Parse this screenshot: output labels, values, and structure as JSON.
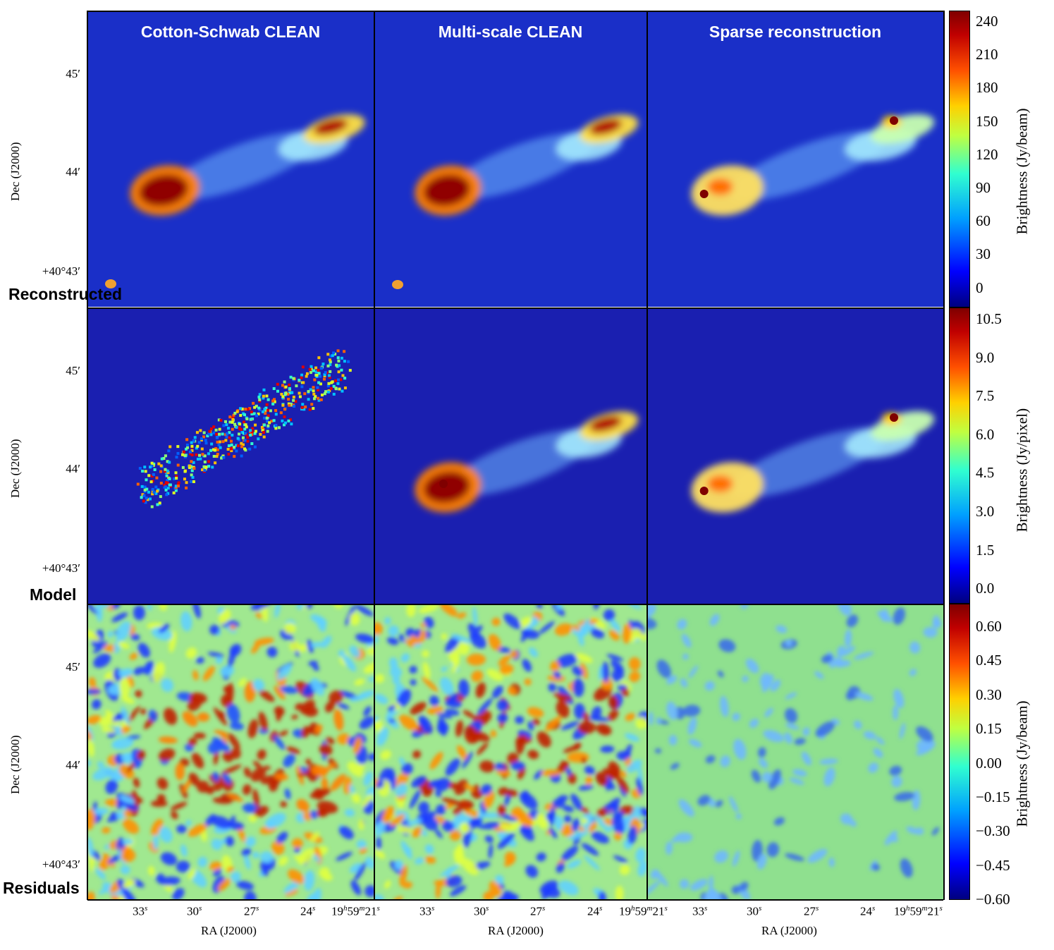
{
  "columns": [
    "Cotton-Schwab CLEAN",
    "Multi-scale CLEAN",
    "Sparse reconstruction"
  ],
  "rows": [
    "Reconstructed",
    "Model",
    "Residuals"
  ],
  "axes": {
    "ylabel": "Dec (J2000)",
    "yticks": [
      "45′",
      "44′",
      "+40°43′"
    ],
    "xlabel": "RA (J2000)",
    "xticks": [
      {
        "main": "33",
        "sup": "s"
      },
      {
        "main": "30",
        "sup": "s"
      },
      {
        "main": "27",
        "sup": "s"
      },
      {
        "main": "24",
        "sup": "s"
      },
      {
        "main": "19",
        "sup": "h",
        "main2": "59",
        "sup2": "m",
        "main3": "21",
        "sup3": "s"
      }
    ]
  },
  "colorbars": [
    {
      "label": "Brightness (Jy/beam)",
      "ticks": [
        "240",
        "210",
        "180",
        "150",
        "120",
        "90",
        "60",
        "30",
        "0"
      ]
    },
    {
      "label": "Brightness (Jy/pixel)",
      "ticks": [
        "10.5",
        "9.0",
        "7.5",
        "6.0",
        "4.5",
        "3.0",
        "1.5",
        "0.0"
      ]
    },
    {
      "label": "Brightness (Jy/beam)",
      "ticks": [
        "0.60",
        "0.45",
        "0.30",
        "0.15",
        "0.00",
        "−0.15",
        "−0.30",
        "−0.45",
        "−0.60"
      ]
    }
  ],
  "colors": {
    "low": "#1a2fc8",
    "high": "#8b0000",
    "mid": "#8fe08f"
  },
  "chart_data": {
    "type": "heatmap",
    "colormap": "jet",
    "grid": "3x3 image panels",
    "colorbar_ranges": [
      [
        -15,
        255
      ],
      [
        -0.5,
        11
      ],
      [
        -0.65,
        0.7
      ]
    ]
  }
}
